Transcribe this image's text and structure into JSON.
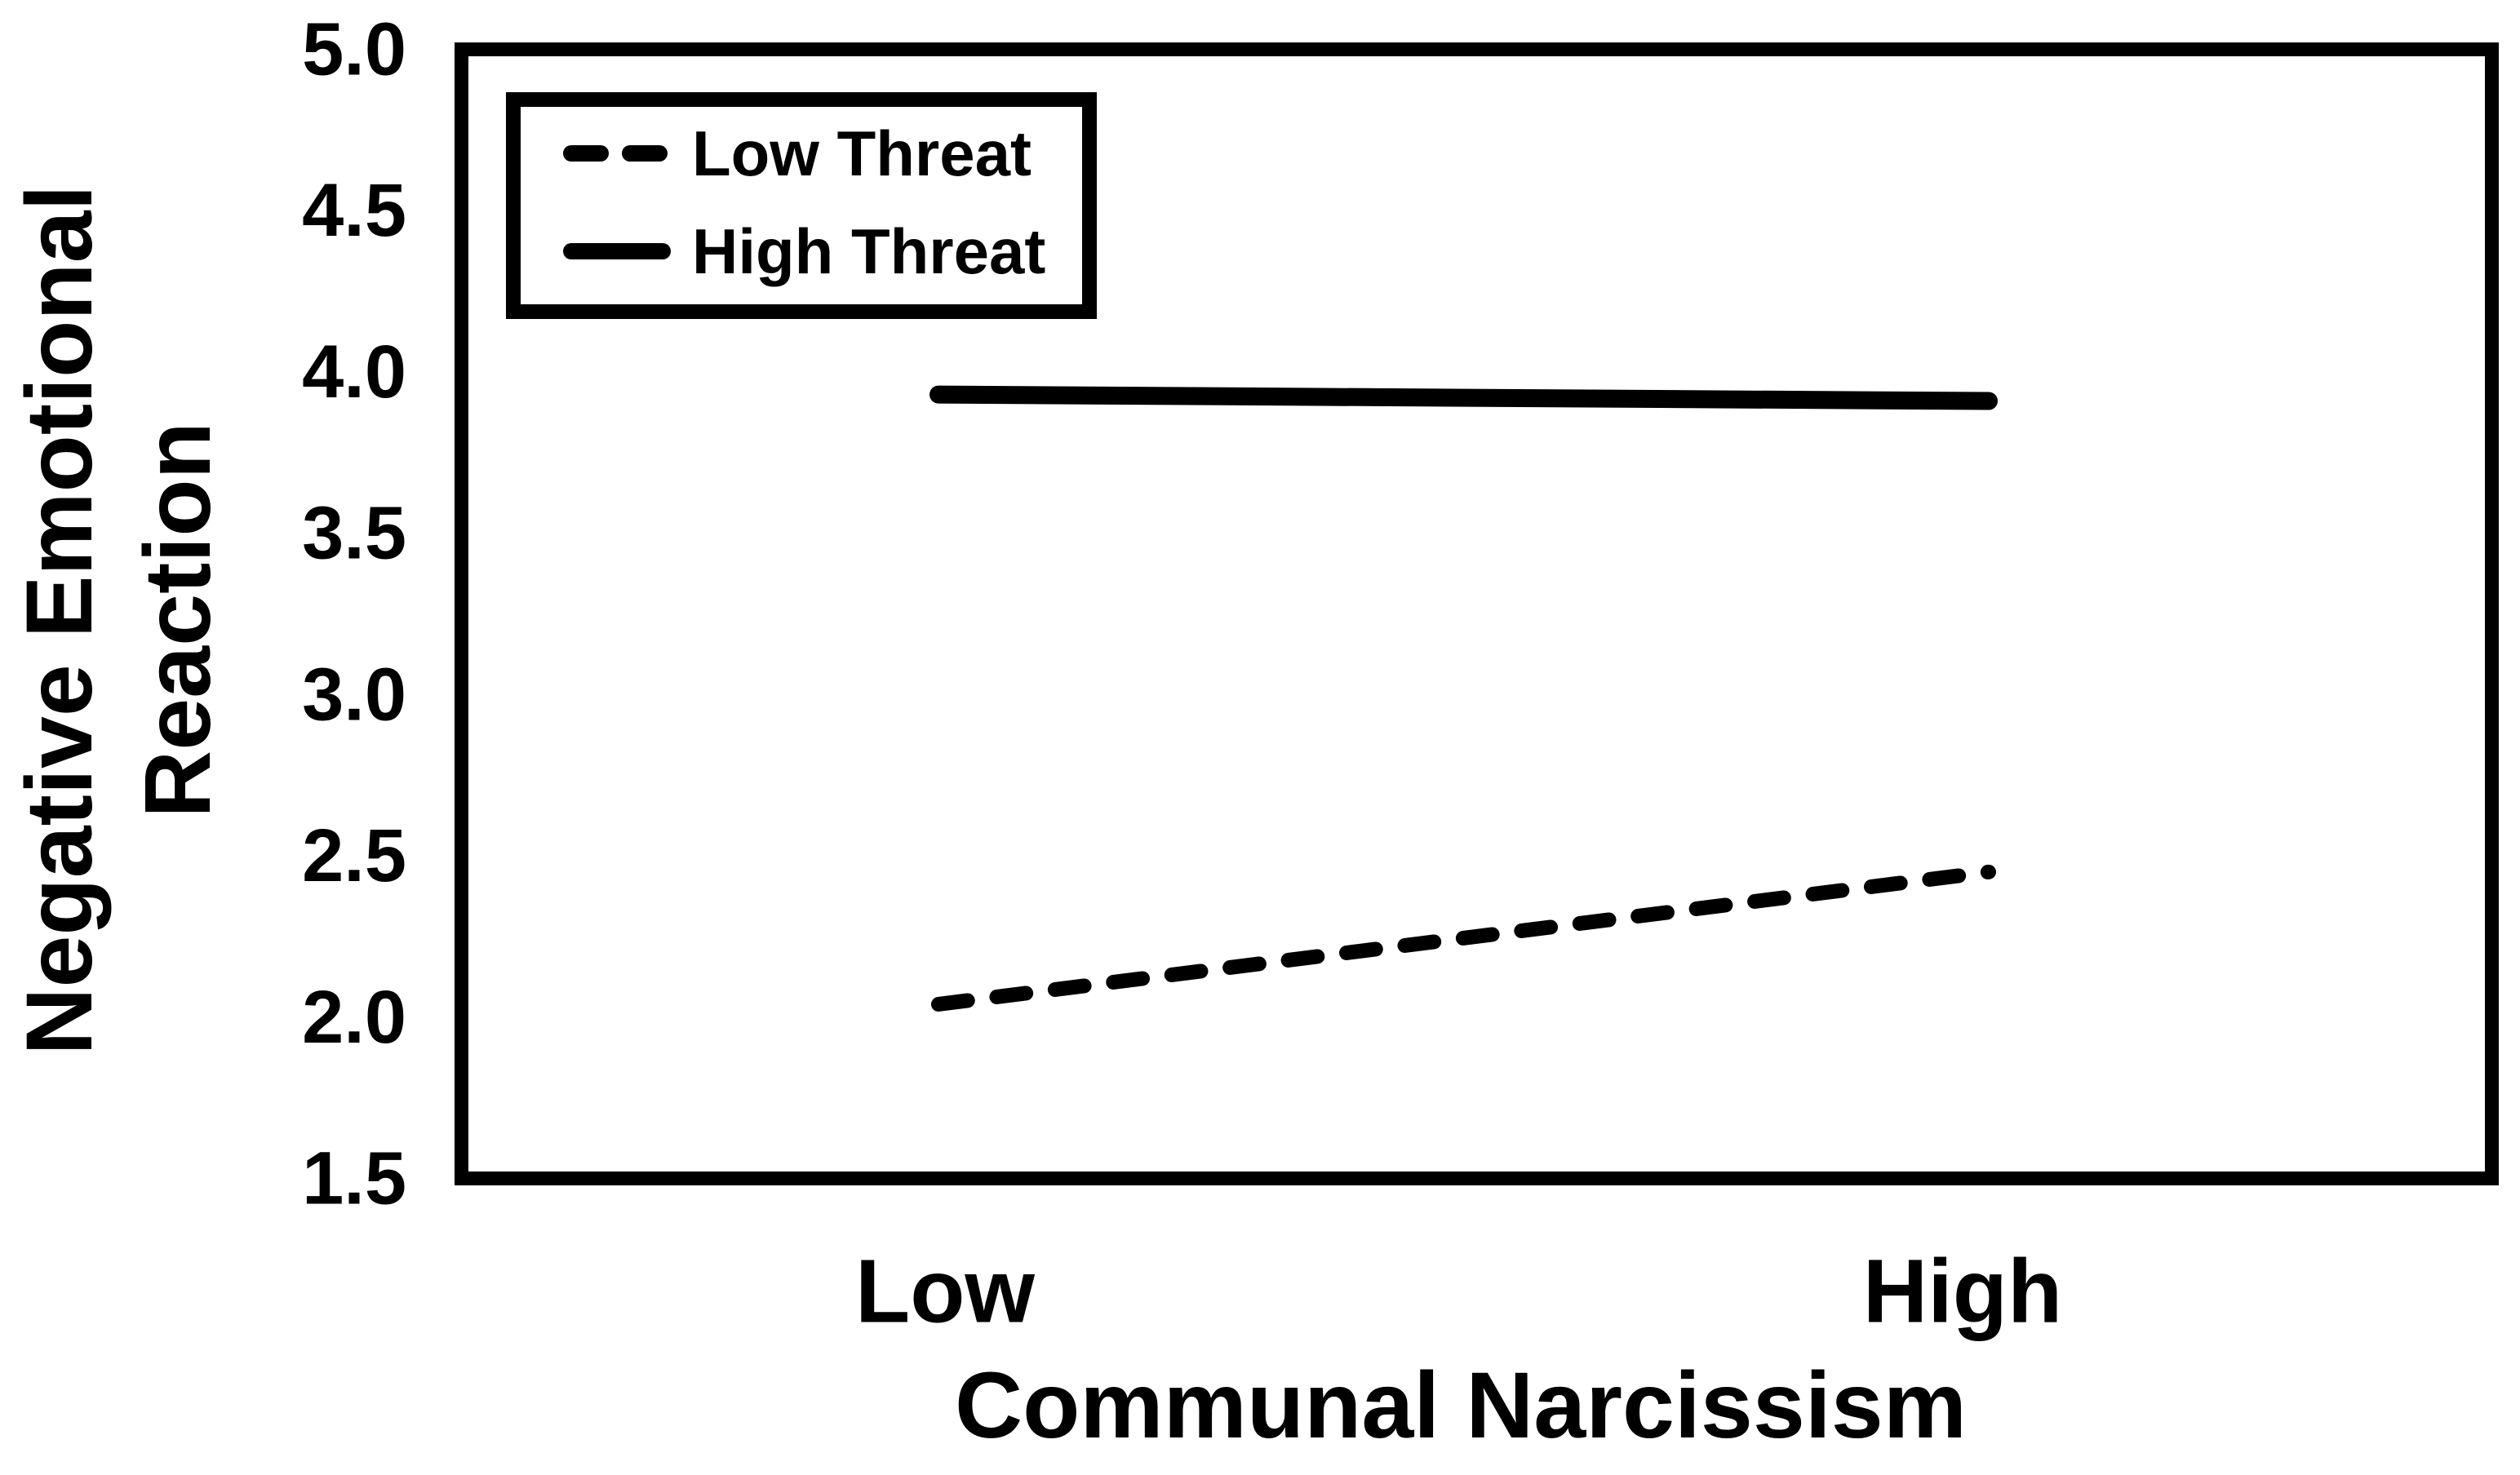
{
  "chart_data": {
    "type": "line",
    "title": "",
    "xlabel": "Communal Narcissism",
    "ylabel": "Negative Emotional Reaction",
    "ylabel_lines": [
      "Negative Emotional",
      "Reaction"
    ],
    "categories": [
      "Low",
      "High"
    ],
    "series": [
      {
        "name": "Low Threat",
        "line_style": "dashed",
        "values": [
          2.04,
          2.45
        ]
      },
      {
        "name": "High Threat",
        "line_style": "solid",
        "values": [
          3.93,
          3.91
        ]
      }
    ],
    "ylim": [
      1.5,
      5.0
    ],
    "ytick_labels": [
      "5.0",
      "4.5",
      "4.0",
      "3.5",
      "3.0",
      "2.5",
      "2.0",
      "1.5"
    ],
    "grid": false,
    "legend_position": "top-left-inside",
    "colors": {
      "line": "#000000",
      "background": "#ffffff",
      "frame": "#000000"
    }
  }
}
